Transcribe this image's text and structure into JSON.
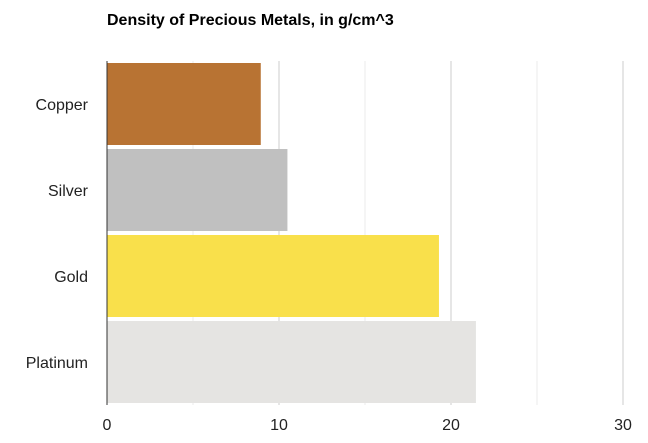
{
  "chart_data": {
    "type": "bar",
    "orientation": "horizontal",
    "title": "Density of Precious Metals, in g/cm^3",
    "xlabel": "",
    "ylabel": "",
    "categories": [
      "Copper",
      "Silver",
      "Gold",
      "Platinum"
    ],
    "values": [
      8.94,
      10.49,
      19.3,
      21.45
    ],
    "colors": [
      "#b87333",
      "#c0c0c0",
      "#f9e04b",
      "#e5e4e2"
    ],
    "xlim": [
      0,
      30
    ],
    "xticks": [
      "0",
      "10",
      "20",
      "30"
    ],
    "grid": true,
    "legend": "none"
  }
}
